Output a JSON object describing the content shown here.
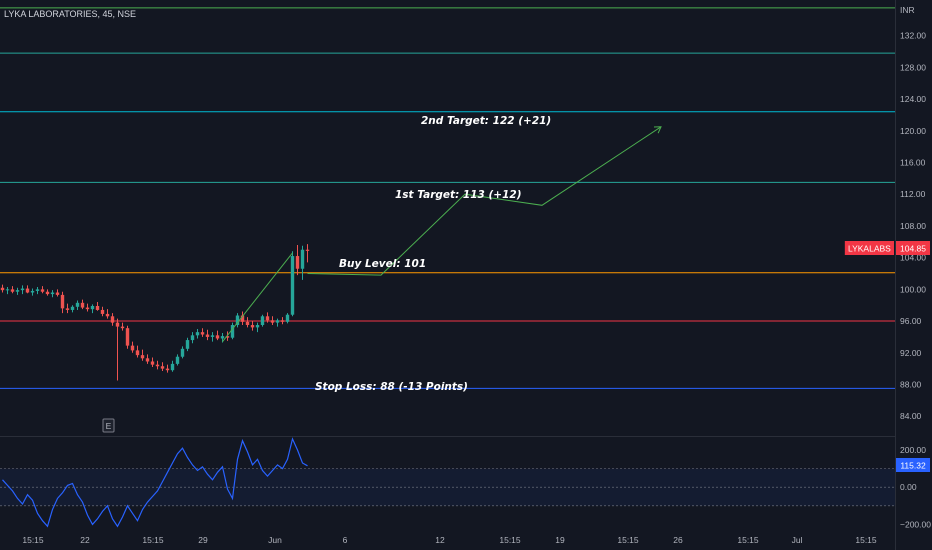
{
  "symbol_title": "LYKA LABORATORIES, 45, NSE",
  "currency": "INR",
  "price_axis": [
    "132.00",
    "128.00",
    "124.00",
    "120.00",
    "116.00",
    "112.00",
    "108.00",
    "104.00",
    "100.00",
    "96.00",
    "92.00",
    "88.00",
    "84.00"
  ],
  "last_price": {
    "ticker": "LYKALABS",
    "value": "104.85",
    "color": "#f23645"
  },
  "rsi_axis": [
    "200.00",
    "0.00",
    "−200.00"
  ],
  "rsi_value": {
    "value": "115.32",
    "color": "#2962ff"
  },
  "time_axis": [
    "15:15",
    "22",
    "15:15",
    "29",
    "Jun",
    "6",
    "12",
    "15:15",
    "19",
    "15:15",
    "26",
    "15:15",
    "Jul",
    "15:15"
  ],
  "event_marker": "E",
  "levels": [
    {
      "name": "top-line",
      "price": 135.5,
      "color": "#4caf50"
    },
    {
      "name": "level-130",
      "price": 129.8,
      "color": "#26a69a"
    },
    {
      "name": "level-122",
      "price": 122.4,
      "color": "#00bcd4"
    },
    {
      "name": "level-113",
      "price": 113.5,
      "color": "#26a69a"
    },
    {
      "name": "buy-level",
      "price": 102.1,
      "color": "#ff9800"
    },
    {
      "name": "level-96",
      "price": 96.0,
      "color": "#f23645"
    },
    {
      "name": "stop-loss",
      "price": 87.5,
      "color": "#2962ff"
    }
  ],
  "annotations": {
    "second_target": "2nd Target: 122 (+21)",
    "first_target": "1st Target: 113 (+12)",
    "buy_level": "Buy Level: 101",
    "stop_loss": "Stop Loss: 88 (-13 Points)"
  },
  "chart_data": {
    "type": "candlestick",
    "title": "LYKA LABORATORIES, 45, NSE",
    "ylabel": "INR",
    "ylim": [
      81.5,
      136.5
    ],
    "candles": [
      [
        100.2,
        100.6,
        99.6,
        99.9
      ],
      [
        99.9,
        100.3,
        99.4,
        100.0
      ],
      [
        100.0,
        100.4,
        99.5,
        99.7
      ],
      [
        99.7,
        100.2,
        99.3,
        99.9
      ],
      [
        99.9,
        100.5,
        99.4,
        100.1
      ],
      [
        100.1,
        100.5,
        99.5,
        99.6
      ],
      [
        99.6,
        100.1,
        99.2,
        99.8
      ],
      [
        99.8,
        100.3,
        99.4,
        100.0
      ],
      [
        100.0,
        100.4,
        99.5,
        99.7
      ],
      [
        99.7,
        100.0,
        99.2,
        99.4
      ],
      [
        99.4,
        99.9,
        99.0,
        99.6
      ],
      [
        99.6,
        100.0,
        99.1,
        99.3
      ],
      [
        99.3,
        99.7,
        97.0,
        97.6
      ],
      [
        97.6,
        98.2,
        97.0,
        97.4
      ],
      [
        97.4,
        98.0,
        97.1,
        97.8
      ],
      [
        97.8,
        98.6,
        97.4,
        98.3
      ],
      [
        98.3,
        98.7,
        97.5,
        97.7
      ],
      [
        97.7,
        98.2,
        97.2,
        97.5
      ],
      [
        97.5,
        98.1,
        97.0,
        97.9
      ],
      [
        97.9,
        98.4,
        97.3,
        97.4
      ],
      [
        97.4,
        97.8,
        96.6,
        96.9
      ],
      [
        96.9,
        97.5,
        96.3,
        96.6
      ],
      [
        96.6,
        97.0,
        95.4,
        95.8
      ],
      [
        95.8,
        96.3,
        88.5,
        95.3
      ],
      [
        95.3,
        95.8,
        94.8,
        95.1
      ],
      [
        95.1,
        95.4,
        92.5,
        92.9
      ],
      [
        92.9,
        93.4,
        92.0,
        92.3
      ],
      [
        92.3,
        92.9,
        91.4,
        91.7
      ],
      [
        91.7,
        92.4,
        91.0,
        91.3
      ],
      [
        91.3,
        91.8,
        90.6,
        90.9
      ],
      [
        90.9,
        91.4,
        90.2,
        90.5
      ],
      [
        90.5,
        91.0,
        89.9,
        90.3
      ],
      [
        90.3,
        90.8,
        89.7,
        90.0
      ],
      [
        90.0,
        90.5,
        89.5,
        89.8
      ],
      [
        89.8,
        91.0,
        89.6,
        90.6
      ],
      [
        90.6,
        91.8,
        90.4,
        91.5
      ],
      [
        91.5,
        92.8,
        91.3,
        92.5
      ],
      [
        92.5,
        93.9,
        92.2,
        93.6
      ],
      [
        93.6,
        94.6,
        93.2,
        94.2
      ],
      [
        94.2,
        95.0,
        93.8,
        94.6
      ],
      [
        94.6,
        95.1,
        94.0,
        94.3
      ],
      [
        94.3,
        94.9,
        93.6,
        94.0
      ],
      [
        94.0,
        94.6,
        93.4,
        94.2
      ],
      [
        94.2,
        94.8,
        93.6,
        93.8
      ],
      [
        93.8,
        94.5,
        93.3,
        94.1
      ],
      [
        94.1,
        94.7,
        93.5,
        93.9
      ],
      [
        93.9,
        95.8,
        93.7,
        95.5
      ],
      [
        95.5,
        97.0,
        95.2,
        96.7
      ],
      [
        96.7,
        97.2,
        95.5,
        95.9
      ],
      [
        95.9,
        96.5,
        95.2,
        95.5
      ],
      [
        95.5,
        96.0,
        94.8,
        95.2
      ],
      [
        95.2,
        95.8,
        94.6,
        95.5
      ],
      [
        95.5,
        96.8,
        95.3,
        96.6
      ],
      [
        96.6,
        97.1,
        95.8,
        96.1
      ],
      [
        96.1,
        96.6,
        95.5,
        95.8
      ],
      [
        95.8,
        96.3,
        95.3,
        96.1
      ],
      [
        96.1,
        96.5,
        95.6,
        95.9
      ],
      [
        95.9,
        97.0,
        95.7,
        96.8
      ],
      [
        96.8,
        104.8,
        96.6,
        104.2
      ],
      [
        104.2,
        105.6,
        101.8,
        102.6
      ],
      [
        102.6,
        105.5,
        101.2,
        105.0
      ],
      [
        105.0,
        105.7,
        103.4,
        104.85
      ]
    ],
    "projection_path": [
      [
        104.85,
        102.0
      ],
      [
        105.9,
        101.8
      ],
      [
        107.1,
        112.0
      ],
      [
        108.2,
        110.6
      ],
      [
        109.9,
        120.5
      ]
    ],
    "rsi": {
      "ylim": [
        -230,
        270
      ],
      "value": 115.32,
      "points": [
        40,
        10,
        -20,
        -60,
        -90,
        -40,
        -70,
        -140,
        -180,
        -210,
        -120,
        -60,
        -30,
        10,
        20,
        -40,
        -80,
        -150,
        -200,
        -170,
        -130,
        -100,
        -170,
        -210,
        -160,
        -100,
        -140,
        -180,
        -120,
        -80,
        -50,
        -20,
        30,
        80,
        130,
        180,
        210,
        160,
        120,
        90,
        110,
        70,
        40,
        80,
        110,
        -10,
        -60,
        150,
        250,
        190,
        120,
        150,
        90,
        60,
        90,
        120,
        100,
        150,
        260,
        200,
        130,
        115
      ]
    }
  }
}
